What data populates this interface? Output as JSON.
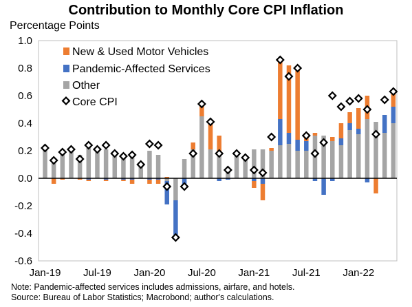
{
  "chart_data": {
    "type": "bar",
    "title": "Contribution to Monthly Core CPI Inflation",
    "ylabel": "Percentage Points",
    "ylim": [
      -0.6,
      1.0
    ],
    "yticks": [
      "1.0",
      "0.8",
      "0.6",
      "0.4",
      "0.2",
      "0.0",
      "-0.2",
      "-0.4",
      "-0.6"
    ],
    "xtick_labels": [
      "Jan-19",
      "Jul-19",
      "Jan-20",
      "Jul-20",
      "Jan-21",
      "Jul-21",
      "Jan-22"
    ],
    "grid": false,
    "legend_position": "top-left",
    "categories": [
      "2019-01",
      "2019-02",
      "2019-03",
      "2019-04",
      "2019-05",
      "2019-06",
      "2019-07",
      "2019-08",
      "2019-09",
      "2019-10",
      "2019-11",
      "2019-12",
      "2020-01",
      "2020-02",
      "2020-03",
      "2020-04",
      "2020-05",
      "2020-06",
      "2020-07",
      "2020-08",
      "2020-09",
      "2020-10",
      "2020-11",
      "2020-12",
      "2021-01",
      "2021-02",
      "2021-03",
      "2021-04",
      "2021-05",
      "2021-06",
      "2021-07",
      "2021-08",
      "2021-09",
      "2021-10",
      "2021-11",
      "2021-12",
      "2022-01",
      "2022-02",
      "2022-03",
      "2022-04",
      "2022-05"
    ],
    "series": [
      {
        "name": "New & Used Motor Vehicles",
        "color": "#ed7d31",
        "values": [
          0.0,
          -0.04,
          -0.01,
          0.0,
          -0.01,
          -0.01,
          0.0,
          -0.01,
          0.0,
          -0.01,
          -0.03,
          0.0,
          -0.03,
          -0.03,
          0.01,
          0.0,
          0.0,
          0.05,
          0.09,
          0.19,
          0.14,
          0.0,
          0.0,
          0.0,
          -0.05,
          -0.12,
          0.02,
          0.43,
          0.49,
          0.53,
          0.06,
          0.02,
          0.0,
          0.03,
          0.11,
          0.08,
          0.15,
          0.17,
          -0.11,
          0.0,
          0.1
        ]
      },
      {
        "name": "Pandemic-Affected Services",
        "color": "#4472c4",
        "values": [
          0.01,
          0.0,
          0.0,
          0.01,
          0.0,
          -0.01,
          0.0,
          -0.01,
          0.01,
          -0.01,
          -0.01,
          0.0,
          -0.01,
          -0.01,
          -0.17,
          -0.25,
          -0.05,
          0.0,
          0.0,
          0.0,
          -0.02,
          -0.01,
          0.0,
          0.01,
          -0.02,
          -0.04,
          0.0,
          0.19,
          0.08,
          0.08,
          0.07,
          -0.02,
          -0.12,
          -0.02,
          0.05,
          0.05,
          0.04,
          -0.03,
          0.0,
          0.13,
          0.12
        ]
      },
      {
        "name": "Other",
        "color": "#a5a5a5",
        "values": [
          0.22,
          0.15,
          0.19,
          0.21,
          0.17,
          0.22,
          0.2,
          0.21,
          0.19,
          0.16,
          0.17,
          0.12,
          0.2,
          0.17,
          -0.02,
          -0.16,
          0.14,
          0.21,
          0.45,
          0.21,
          0.17,
          0.07,
          0.17,
          0.14,
          0.21,
          0.21,
          0.2,
          0.24,
          0.25,
          0.2,
          0.2,
          0.31,
          0.31,
          0.27,
          0.24,
          0.35,
          0.32,
          0.43,
          0.41,
          0.33,
          0.4
        ]
      },
      {
        "name": "Core CPI",
        "color": "#ffffff",
        "values": [
          0.22,
          0.13,
          0.19,
          0.21,
          0.14,
          0.24,
          0.21,
          0.24,
          0.18,
          0.16,
          0.17,
          0.1,
          0.25,
          0.24,
          -0.06,
          -0.43,
          -0.06,
          0.18,
          0.54,
          0.41,
          0.18,
          0.06,
          0.18,
          0.15,
          0.06,
          0.04,
          0.3,
          0.86,
          0.74,
          0.8,
          0.31,
          0.18,
          0.26,
          0.6,
          0.52,
          0.56,
          0.58,
          0.5,
          0.32,
          0.57,
          0.63
        ]
      }
    ]
  },
  "notes": [
    "Note: Pandemic-affected services includes admissions, airfare, and hotels.",
    "Source: Bureau of Labor Statistics; Macrobond; author's calculations."
  ]
}
